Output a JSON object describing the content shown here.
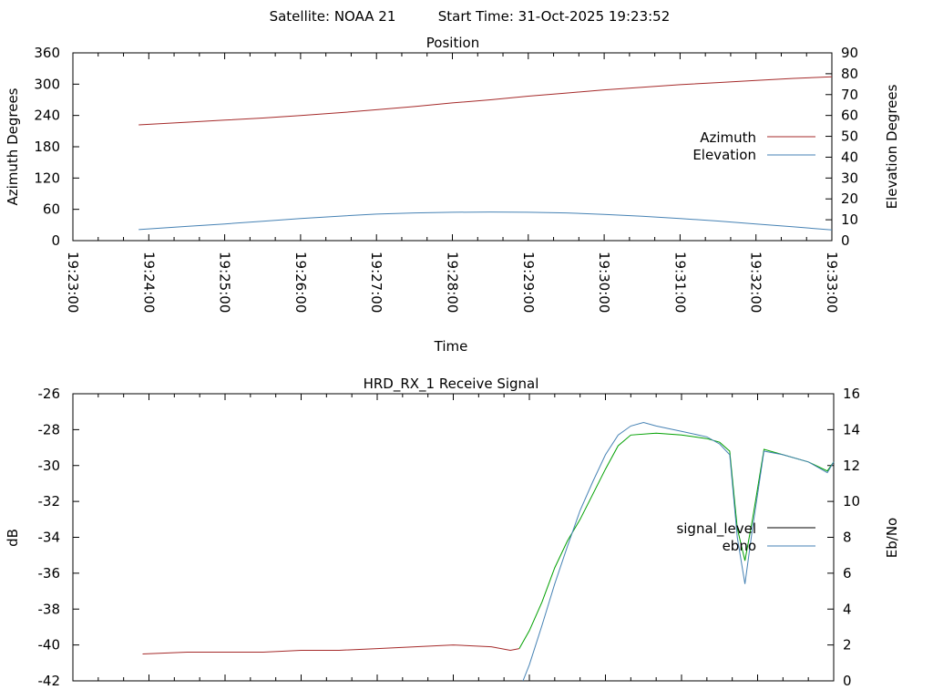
{
  "header": {
    "satellite": "Satellite: NOAA 21",
    "start_time": "Start Time: 31-Oct-2025 19:23:52"
  },
  "chart_data": [
    {
      "type": "line",
      "title": "Position",
      "xlabel": "Time",
      "ylabel": "Azimuth Degrees",
      "y2label": "Elevation Degrees",
      "x_ticks": [
        "19:23:00",
        "19:24:00",
        "19:25:00",
        "19:26:00",
        "19:27:00",
        "19:28:00",
        "19:29:00",
        "19:30:00",
        "19:31:00",
        "19:32:00",
        "19:33:00"
      ],
      "xlim": [
        "19:23:00",
        "19:33:00"
      ],
      "ylim": [
        0,
        360
      ],
      "y_ticks": [
        0,
        60,
        120,
        180,
        240,
        300,
        360
      ],
      "y2lim": [
        0,
        90
      ],
      "y2_ticks": [
        0,
        10,
        20,
        30,
        40,
        50,
        60,
        70,
        80,
        90
      ],
      "legend_position": "right",
      "series": [
        {
          "name": "Azimuth",
          "axis": "y",
          "color": "#a52a2a",
          "x": [
            "19:23:52",
            "19:24:30",
            "19:25:00",
            "19:25:30",
            "19:26:00",
            "19:26:30",
            "19:27:00",
            "19:27:30",
            "19:28:00",
            "19:28:30",
            "19:29:00",
            "19:29:30",
            "19:30:00",
            "19:30:30",
            "19:31:00",
            "19:31:30",
            "19:32:00",
            "19:32:30",
            "19:33:00"
          ],
          "values": [
            222,
            227,
            231,
            235,
            240,
            245,
            251,
            257,
            264,
            270,
            277,
            283,
            289,
            294,
            299,
            303,
            307,
            311,
            314
          ]
        },
        {
          "name": "Elevation",
          "axis": "y2",
          "color": "#4682b4",
          "x": [
            "19:23:52",
            "19:24:30",
            "19:25:00",
            "19:25:30",
            "19:26:00",
            "19:26:30",
            "19:27:00",
            "19:27:30",
            "19:28:00",
            "19:28:30",
            "19:29:00",
            "19:29:30",
            "19:30:00",
            "19:30:30",
            "19:31:00",
            "19:31:30",
            "19:32:00",
            "19:32:30",
            "19:33:00"
          ],
          "values": [
            5.3,
            6.8,
            8.0,
            9.3,
            10.6,
            11.7,
            12.7,
            13.3,
            13.6,
            13.7,
            13.6,
            13.3,
            12.6,
            11.7,
            10.6,
            9.4,
            8.0,
            6.6,
            5.1
          ]
        }
      ]
    },
    {
      "type": "line",
      "title": "HRD_RX_1 Receive Signal",
      "xlabel": "",
      "ylabel": "dB",
      "y2label": "Eb/No",
      "xlim": [
        "19:23:00",
        "19:33:00"
      ],
      "ylim": [
        -42,
        -26
      ],
      "y_ticks": [
        -42,
        -40,
        -38,
        -36,
        -34,
        -32,
        -30,
        -28,
        -26
      ],
      "y2lim": [
        0,
        16
      ],
      "y2_ticks": [
        0,
        2,
        4,
        6,
        8,
        10,
        12,
        14,
        16
      ],
      "legend_position": "right",
      "series": [
        {
          "name": "signal_level",
          "axis": "y",
          "color": "#000000",
          "segment_colors": [
            {
              "until": "19:28:50",
              "color": "#a52a2a"
            },
            {
              "until": "19:33:00",
              "color": "#00a000"
            }
          ],
          "x": [
            "19:23:55",
            "19:24:30",
            "19:25:00",
            "19:25:30",
            "19:26:00",
            "19:26:30",
            "19:27:00",
            "19:27:30",
            "19:28:00",
            "19:28:30",
            "19:28:45",
            "19:28:52",
            "19:29:00",
            "19:29:10",
            "19:29:20",
            "19:29:30",
            "19:29:40",
            "19:29:50",
            "19:30:00",
            "19:30:10",
            "19:30:20",
            "19:30:40",
            "19:31:00",
            "19:31:20",
            "19:31:30",
            "19:31:38",
            "19:31:44",
            "19:31:50",
            "19:31:56",
            "19:32:05",
            "19:32:20",
            "19:32:40",
            "19:32:55",
            "19:33:00"
          ],
          "values": [
            -40.5,
            -40.4,
            -40.4,
            -40.4,
            -40.3,
            -40.3,
            -40.2,
            -40.1,
            -40.0,
            -40.1,
            -40.3,
            -40.2,
            -39.2,
            -37.6,
            -35.7,
            -34.2,
            -33.0,
            -31.6,
            -30.2,
            -28.9,
            -28.3,
            -28.2,
            -28.3,
            -28.5,
            -28.7,
            -29.2,
            -33.5,
            -35.3,
            -33.0,
            -29.1,
            -29.4,
            -29.8,
            -30.3,
            -29.8
          ]
        },
        {
          "name": "ebno",
          "axis": "y2",
          "color": "#4682b4",
          "x": [
            "19:28:55",
            "19:29:00",
            "19:29:10",
            "19:29:20",
            "19:29:30",
            "19:29:40",
            "19:29:50",
            "19:30:00",
            "19:30:10",
            "19:30:20",
            "19:30:30",
            "19:30:40",
            "19:31:00",
            "19:31:20",
            "19:31:30",
            "19:31:38",
            "19:31:44",
            "19:31:50",
            "19:31:56",
            "19:32:05",
            "19:32:20",
            "19:32:40",
            "19:32:55",
            "19:33:00"
          ],
          "values": [
            0.0,
            0.9,
            3.1,
            5.4,
            7.5,
            9.5,
            11.1,
            12.6,
            13.7,
            14.2,
            14.4,
            14.2,
            13.9,
            13.6,
            13.2,
            12.6,
            8.0,
            5.4,
            8.5,
            12.8,
            12.6,
            12.2,
            11.6,
            12.2
          ]
        }
      ]
    }
  ]
}
